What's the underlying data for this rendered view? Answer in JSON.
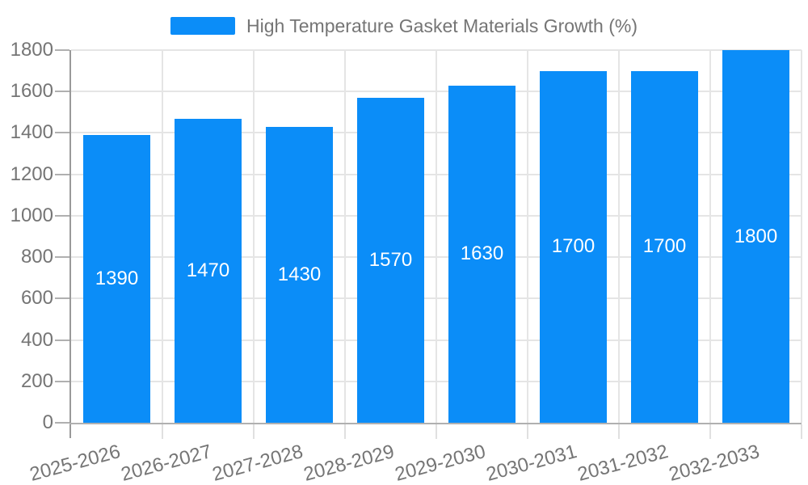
{
  "chart_data": {
    "type": "bar",
    "title": "",
    "legend": "High Temperature Gasket Materials Growth (%)",
    "legend_position": "top",
    "categories": [
      "2025-2026",
      "2026-2027",
      "2027-2028",
      "2028-2029",
      "2029-2030",
      "2030-2031",
      "2031-2032",
      "2032-2033"
    ],
    "values": [
      1390,
      1470,
      1430,
      1570,
      1630,
      1700,
      1700,
      1800
    ],
    "xlabel": "",
    "ylabel": "",
    "ylim": [
      0,
      1800
    ],
    "ytick_step": 200,
    "yticks": [
      0,
      200,
      400,
      600,
      800,
      1000,
      1200,
      1400,
      1600,
      1800
    ],
    "grid": true,
    "bar_labels_visible": true,
    "bar_label_position": "inside-center",
    "x_label_rotation_deg": -15,
    "colors": {
      "bar": "#0b8df8",
      "bar_label": "#ffffff",
      "axis_text": "#757575",
      "legend_text": "#757575",
      "gridline": "#e5e5e5",
      "x_tick": "#e0e0e0",
      "y_tick": "#b0b0b0",
      "y_axis_line": "#999999",
      "x_axis_line": "#b0b0b0",
      "background": "#ffffff"
    }
  }
}
